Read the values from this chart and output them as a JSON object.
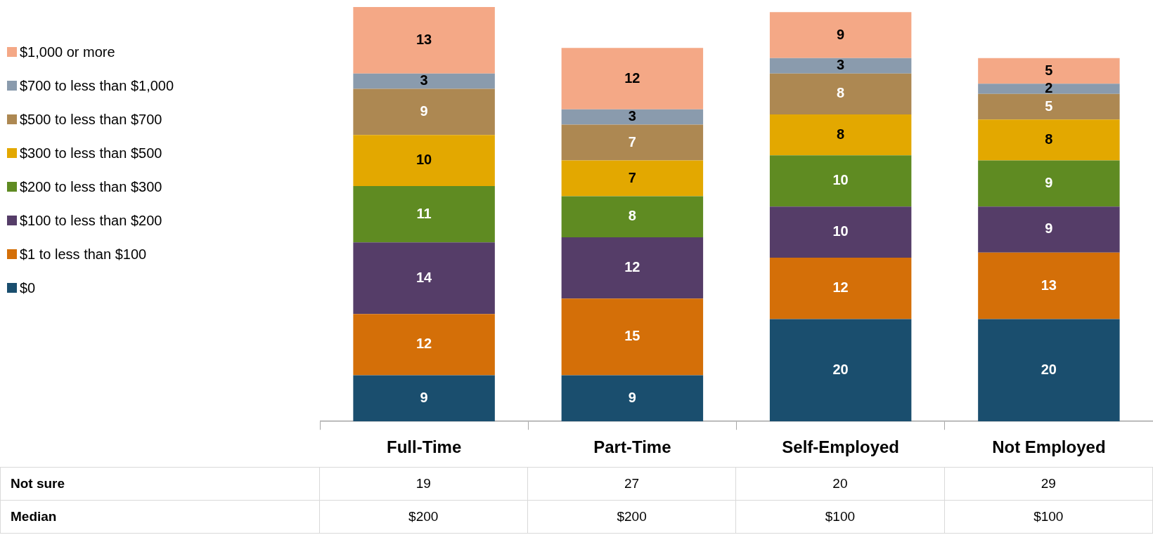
{
  "chart_data": {
    "type": "bar",
    "stacked": true,
    "data_labels": true,
    "legend": "left",
    "grid": false,
    "tick_labels": "x",
    "categories": [
      "Full-Time",
      "Part-Time",
      "Self-Employed",
      "Not Employed"
    ],
    "series": [
      {
        "name": "$0",
        "color": "#1a4e6e",
        "values": [
          9,
          9,
          20,
          20
        ]
      },
      {
        "name": "$1 to less than $100",
        "color": "#d46f08",
        "values": [
          12,
          15,
          12,
          13
        ]
      },
      {
        "name": "$100 to less than $200",
        "color": "#553d68",
        "values": [
          14,
          12,
          10,
          9
        ]
      },
      {
        "name": "$200 to less than $300",
        "color": "#5f8b22",
        "values": [
          11,
          8,
          10,
          9
        ]
      },
      {
        "name": "$300 to less than $500",
        "color": "#e3a800",
        "values": [
          10,
          7,
          8,
          8
        ]
      },
      {
        "name": "$500 to less than $700",
        "color": "#ad8852",
        "values": [
          9,
          7,
          8,
          5
        ]
      },
      {
        "name": "$700 to less than $1,000",
        "color": "#8a9bad",
        "values": [
          3,
          3,
          3,
          2
        ]
      },
      {
        "name": "$1,000 or more",
        "color": "#f4a886",
        "values": [
          13,
          12,
          9,
          5
        ]
      }
    ],
    "annotations": [
      "Not sure",
      "19",
      "27",
      "20",
      "29",
      "Median",
      "$200",
      "$200",
      "$100",
      "$100"
    ]
  }
}
